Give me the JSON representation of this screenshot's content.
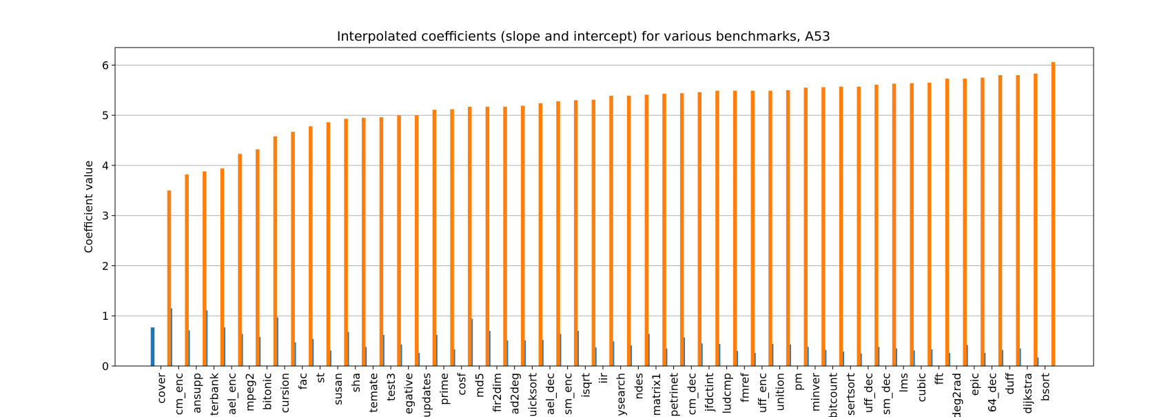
{
  "chart_data": {
    "type": "bar",
    "title": "Interpolated coefficients (slope and intercept) for various benchmarks, A53",
    "xlabel": "",
    "ylabel": "Coefficient value",
    "ylim": [
      0,
      6.35
    ],
    "yticks": [
      0,
      1,
      2,
      3,
      4,
      5,
      6
    ],
    "grid": "y",
    "legend": "none",
    "categories": [
      "cover",
      "cm_enc",
      "ansupp",
      "terbank",
      "ael_enc",
      "mpeg2",
      "bitonic",
      "cursion",
      "fac",
      "st",
      "susan",
      "sha",
      "temate",
      "test3",
      "egative",
      "updates",
      "prime",
      "cosf",
      "md5",
      "fir2dim",
      "ad2deg",
      "uicksort",
      "ael_dec",
      "sm_enc",
      "isqrt",
      "iir",
      "ysearch",
      "ndes",
      "matrix1",
      "petrinet",
      "cm_dec",
      "jfdctint",
      "ludcmp",
      "fmref",
      "uff_enc",
      "unition",
      "pm",
      "minver",
      "bitcount",
      "sertsort",
      "uff_dec",
      "sm_dec",
      "lms",
      "cubic",
      "fft",
      "deg2rad",
      "epic",
      "64_dec",
      "duff",
      "dijkstra",
      "bsort"
    ],
    "series": [
      {
        "color": "#1f77b4",
        "values": [
          0.77,
          1.15,
          0.71,
          1.11,
          0.77,
          0.64,
          0.58,
          0.97,
          0.47,
          0.54,
          0.31,
          0.68,
          0.38,
          0.62,
          0.43,
          0.26,
          0.62,
          0.33,
          0.94,
          0.7,
          0.51,
          0.51,
          0.52,
          0.64,
          0.7,
          0.37,
          0.49,
          0.41,
          0.64,
          0.35,
          0.57,
          0.45,
          0.44,
          0.3,
          0.26,
          0.44,
          0.43,
          0.38,
          0.32,
          0.29,
          0.25,
          0.38,
          0.35,
          0.31,
          0.33,
          0.26,
          0.42,
          0.26,
          0.32,
          0.35,
          0.17
        ]
      },
      {
        "color": "#ff7f0e",
        "values": [
          3.5,
          3.82,
          3.88,
          3.94,
          4.23,
          4.32,
          4.58,
          4.67,
          4.78,
          4.86,
          4.93,
          4.95,
          4.96,
          5.0,
          5.0,
          5.11,
          5.12,
          5.17,
          5.17,
          5.17,
          5.19,
          5.24,
          5.28,
          5.3,
          5.31,
          5.39,
          5.39,
          5.41,
          5.43,
          5.44,
          5.46,
          5.49,
          5.49,
          5.49,
          5.49,
          5.5,
          5.55,
          5.56,
          5.57,
          5.57,
          5.61,
          5.63,
          5.64,
          5.65,
          5.73,
          5.73,
          5.75,
          5.8,
          5.8,
          5.83,
          6.06
        ]
      }
    ]
  }
}
